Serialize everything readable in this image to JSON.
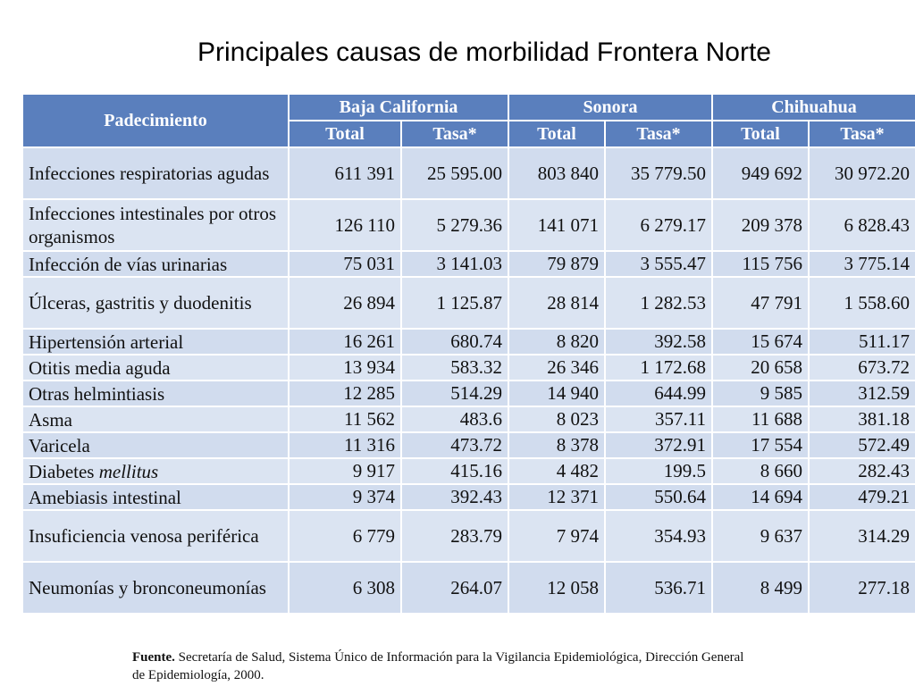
{
  "title": "Principales causas de morbilidad Frontera Norte",
  "table": {
    "header_disease": "Padecimiento",
    "regions": [
      "Baja California",
      "Sonora",
      "Chihuahua"
    ],
    "sub_total": "Total",
    "sub_tasa": "Tasa*",
    "rows": [
      {
        "name": "Infecciones respiratorias agudas",
        "values": [
          "611 391",
          "25 595.00",
          "803 840",
          "35 779.50",
          "949 692",
          "30 972.20"
        ]
      },
      {
        "name": "Infecciones intestinales por otros organismos",
        "values": [
          "126 110",
          "5 279.36",
          "141 071",
          "6 279.17",
          "209 378",
          "6 828.43"
        ]
      },
      {
        "name": "Infección de vías urinarias",
        "values": [
          "75 031",
          "3 141.03",
          "79 879",
          "3 555.47",
          "115 756",
          "3 775.14"
        ]
      },
      {
        "name": "Úlceras, gastritis y duodenitis",
        "values": [
          "26 894",
          "1 125.87",
          "28 814",
          "1 282.53",
          "47 791",
          "1 558.60"
        ]
      },
      {
        "name": "Hipertensión arterial",
        "values": [
          "16 261",
          "680.74",
          "8 820",
          "392.58",
          "15 674",
          "511.17"
        ]
      },
      {
        "name": "Otitis media aguda",
        "values": [
          "13 934",
          "583.32",
          "26 346",
          "1 172.68",
          "20 658",
          "673.72"
        ]
      },
      {
        "name": "Otras helmintiasis",
        "values": [
          "12 285",
          "514.29",
          "14 940",
          "644.99",
          "9 585",
          "312.59"
        ]
      },
      {
        "name": "Asma",
        "values": [
          "11 562",
          "483.6",
          "8 023",
          "357.11",
          "11 688",
          "381.18"
        ]
      },
      {
        "name": "Varicela",
        "values": [
          "11 316",
          "473.72",
          "8 378",
          "372.91",
          "17 554",
          "572.49"
        ]
      },
      {
        "name_main": "Diabetes ",
        "name_italic": "mellitus",
        "values": [
          "9 917",
          "415.16",
          "4 482",
          "199.5",
          "8 660",
          "282.43"
        ]
      },
      {
        "name": "Amebiasis intestinal",
        "values": [
          "9 374",
          "392.43",
          "12 371",
          "550.64",
          "14 694",
          "479.21"
        ]
      },
      {
        "name": "Insuficiencia venosa periférica",
        "values": [
          "6 779",
          "283.79",
          "7 974",
          "354.93",
          "9 637",
          "314.29"
        ]
      },
      {
        "name": "Neumonías y bronconeumonías",
        "values": [
          "6 308",
          "264.07",
          "12 058",
          "536.71",
          "8 499",
          "277.18"
        ]
      }
    ]
  },
  "source": {
    "label": "Fuente.",
    "text": "Secretaría de Salud, Sistema Único de Información para la Vigilancia Epidemiológica, Dirección General de Epidemiología, 2000."
  }
}
